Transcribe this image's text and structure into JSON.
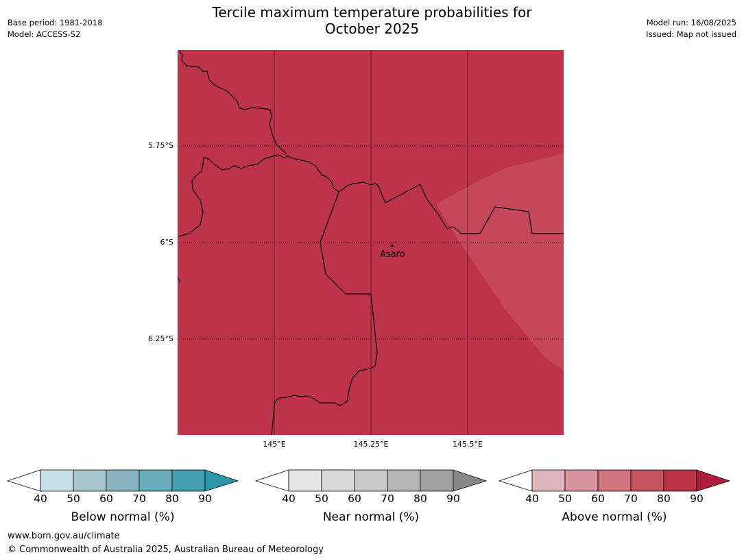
{
  "header": {
    "title_line1": "Tercile maximum temperature probabilities for",
    "title_line2": "October 2025",
    "base_period": "Base period: 1981-2018",
    "model": "Model: ACCESS-S2",
    "model_run": "Model run: 16/08/2025",
    "issued": "Issued: Map not issued"
  },
  "map": {
    "latitude_labels": [
      "5.75°S",
      "6°S",
      "6.25°S"
    ],
    "longitude_labels": [
      "145°E",
      "145.25°E",
      "145.5°E"
    ],
    "city": {
      "name": "Asaro"
    },
    "background_category": "Above normal 80-90%",
    "colors": {
      "above_80_90": "#bd334a",
      "above_70_80": "#c4475a",
      "border": "#000000"
    }
  },
  "colorbars": [
    {
      "label": "Below normal (%)",
      "ticks": [
        "40",
        "50",
        "60",
        "70",
        "80",
        "90"
      ],
      "colors": [
        "#c8e1e6",
        "#a5c6cc",
        "#88b5c1",
        "#6aabb9",
        "#45a0ae"
      ],
      "extend_color": "#2e96a6"
    },
    {
      "label": "Near normal (%)",
      "ticks": [
        "40",
        "50",
        "60",
        "70",
        "80",
        "90"
      ],
      "colors": [
        "#e6e6e6",
        "#d9d9d9",
        "#c9c9c9",
        "#b5b5b5",
        "#a1a1a1"
      ],
      "extend_color": "#878787"
    },
    {
      "label": "Above normal (%)",
      "ticks": [
        "40",
        "50",
        "60",
        "70",
        "80",
        "90"
      ],
      "colors": [
        "#e1b5bd",
        "#d8949e",
        "#d0747f",
        "#c5535f",
        "#bd334a"
      ],
      "extend_color": "#ae1d3b"
    }
  ],
  "footer": {
    "website": "www.bom.gov.au/climate",
    "copyright": "© Commonwealth of Australia 2025, Australian Bureau of Meteorology"
  }
}
